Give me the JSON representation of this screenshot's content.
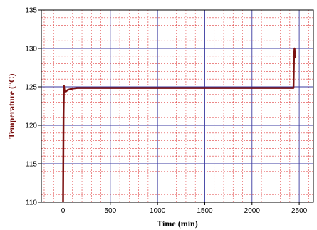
{
  "chart_data": {
    "type": "line",
    "title": "",
    "xlabel": "Time (min)",
    "ylabel": "Temperature (°C)",
    "xlim": [
      -230,
      2650
    ],
    "ylim": [
      110,
      135
    ],
    "x_ticks": [
      0,
      500,
      1000,
      1500,
      2000,
      2500
    ],
    "y_ticks": [
      110,
      115,
      120,
      125,
      130,
      135
    ],
    "x_tick_labels": [
      "0",
      "500",
      "1000",
      "1500",
      "2000",
      "2500"
    ],
    "y_tick_labels": [
      "110",
      "115",
      "120",
      "125",
      "130",
      "135"
    ],
    "grid": {
      "major": true,
      "minor": true
    },
    "colors": {
      "series": "#7a1010",
      "major_grid": "#3a3aa0",
      "minor_grid": "#e04040",
      "ylabel": "#7a1010"
    },
    "series": [
      {
        "name": "",
        "x": [
          0,
          5,
          10,
          15,
          20,
          30,
          50,
          80,
          110,
          150,
          300,
          1000,
          2000,
          2440,
          2445,
          2450,
          2455,
          2460
        ],
        "y": [
          110,
          121.5,
          125.1,
          124.5,
          124.4,
          124.4,
          124.6,
          124.7,
          124.8,
          124.85,
          124.85,
          124.85,
          124.85,
          124.85,
          129.0,
          130.0,
          129.2,
          128.7
        ]
      }
    ]
  }
}
